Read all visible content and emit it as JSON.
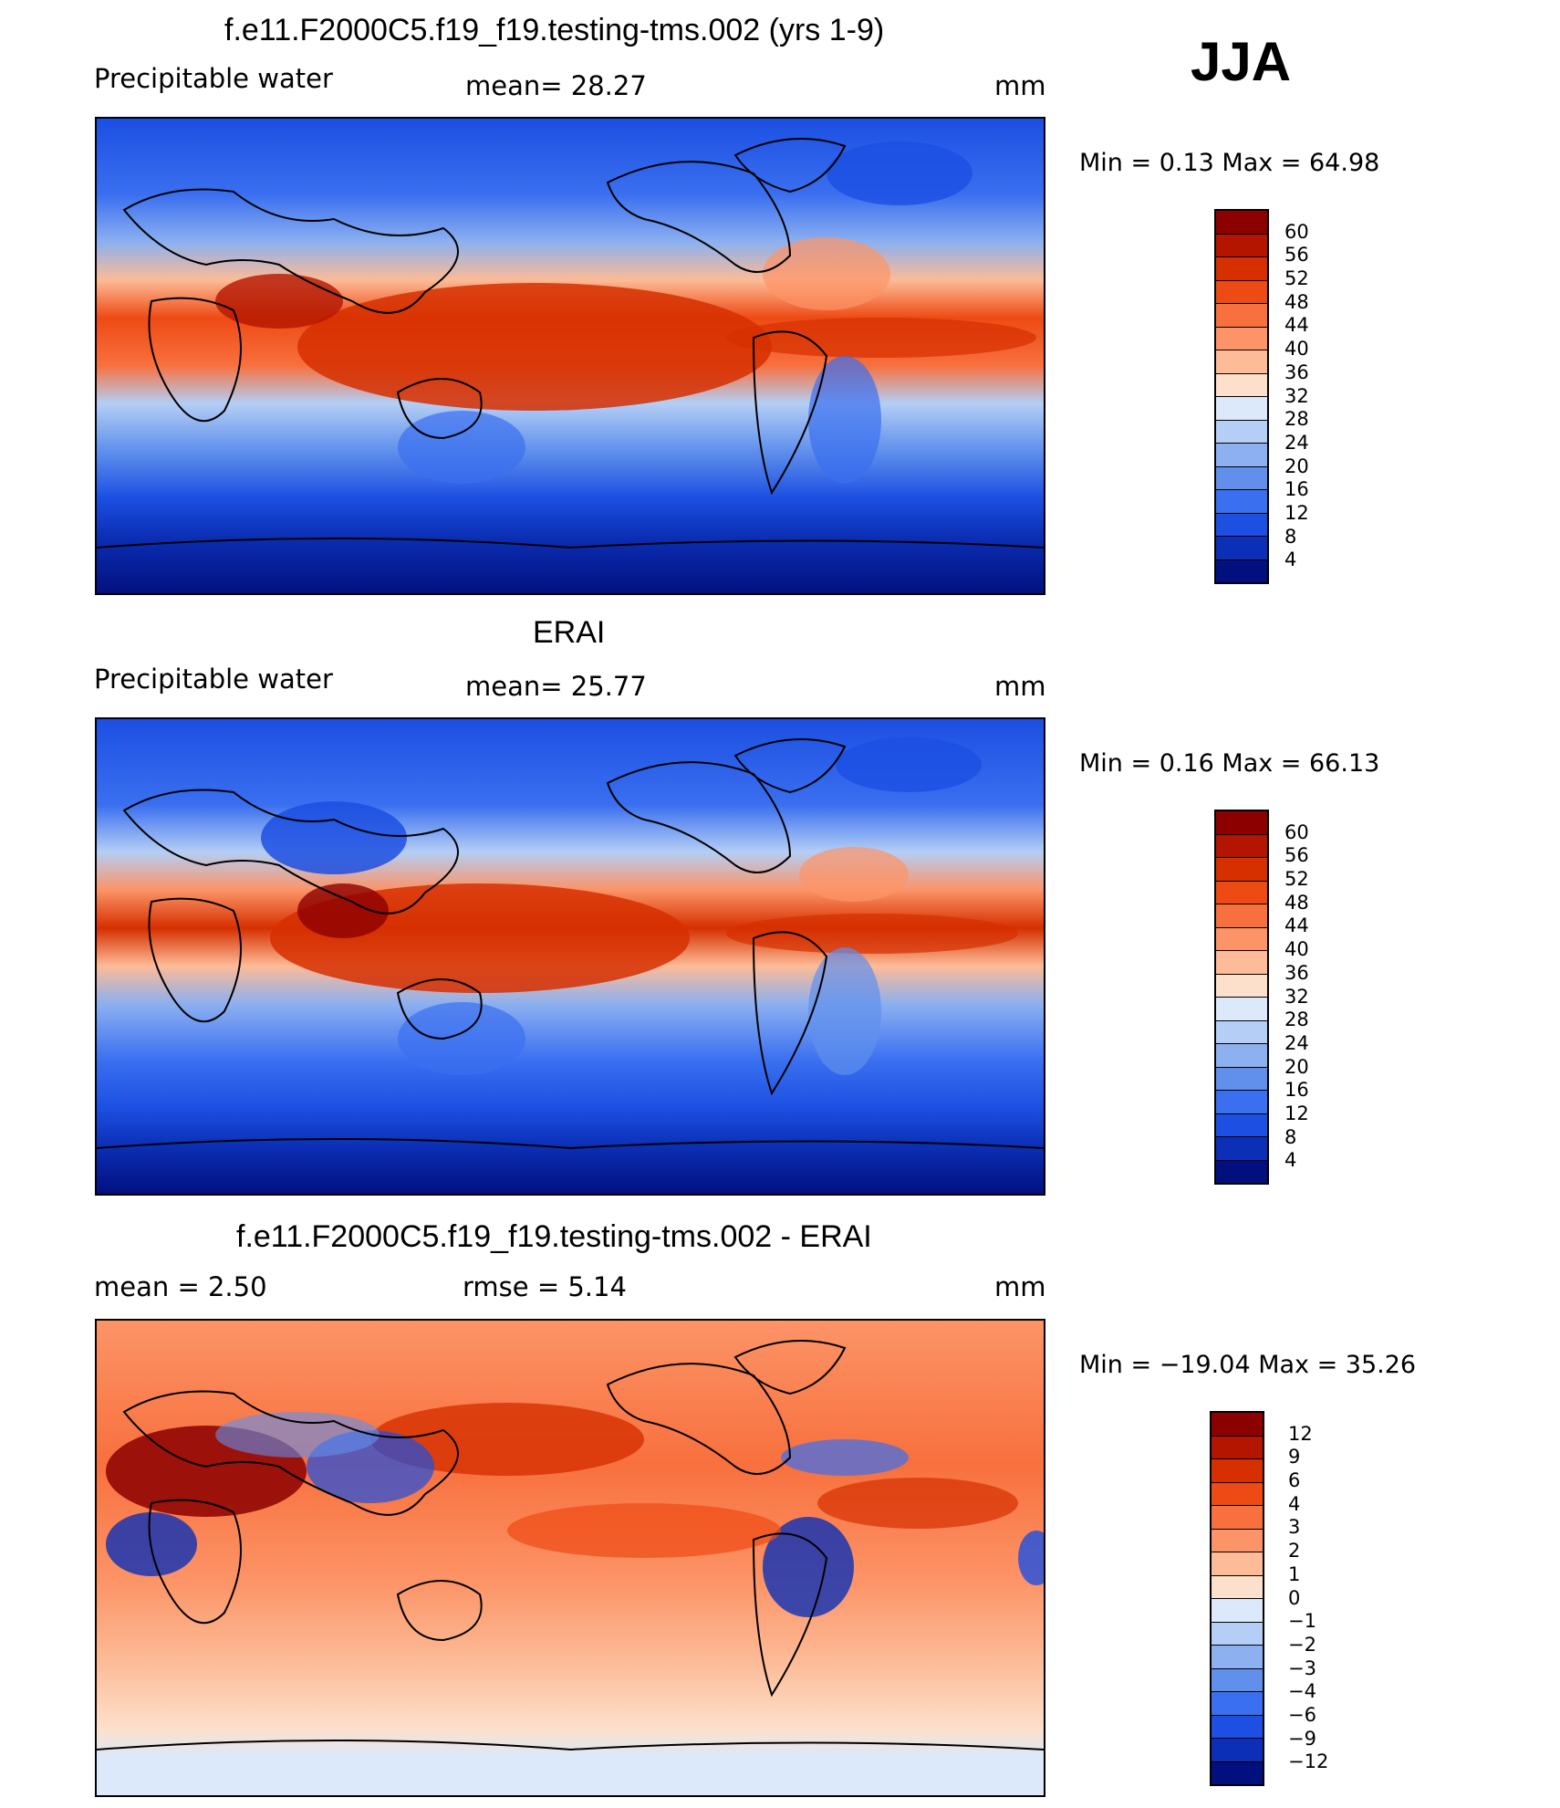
{
  "season": "JJA",
  "panels": [
    {
      "id": "model",
      "title": "f.e11.F2000C5.f19_f19.testing-tms.002 (yrs 1-9)",
      "left": "Precipitable  water",
      "middle": "mean=   28.27",
      "units": "mm",
      "minmax": "Min  =     0.13  Max  =    64.98",
      "cbar_labels": [
        "60",
        "56",
        "52",
        "48",
        "44",
        "40",
        "36",
        "32",
        "28",
        "24",
        "20",
        "16",
        "12",
        "8",
        "4"
      ],
      "cbar_colors": [
        "#8c0000",
        "#b31500",
        "#d62f00",
        "#ee4a14",
        "#f8703e",
        "#fc9467",
        "#fdbb97",
        "#fde0cb",
        "#dbe9fa",
        "#b4cef5",
        "#8cb0f0",
        "#6090ec",
        "#3a6ff0",
        "#1c4fe2",
        "#0b2fb6",
        "#02107f"
      ]
    },
    {
      "id": "obs",
      "title": "ERAI",
      "left": "Precipitable  water",
      "middle": "mean=   25.77",
      "units": "mm",
      "minmax": "Min  =     0.16  Max  =    66.13",
      "cbar_labels": [
        "60",
        "56",
        "52",
        "48",
        "44",
        "40",
        "36",
        "32",
        "28",
        "24",
        "20",
        "16",
        "12",
        "8",
        "4"
      ],
      "cbar_colors": [
        "#8c0000",
        "#b31500",
        "#d62f00",
        "#ee4a14",
        "#f8703e",
        "#fc9467",
        "#fdbb97",
        "#fde0cb",
        "#dbe9fa",
        "#b4cef5",
        "#8cb0f0",
        "#6090ec",
        "#3a6ff0",
        "#1c4fe2",
        "#0b2fb6",
        "#02107f"
      ]
    },
    {
      "id": "diff",
      "title": "f.e11.F2000C5.f19_f19.testing-tms.002 - ERAI",
      "left": "mean  =      2.50",
      "middle": "rmse  =      5.14",
      "units": "mm",
      "minmax": "Min  = −19.04  Max  =    35.26",
      "cbar_labels": [
        "12",
        "9",
        "6",
        "4",
        "3",
        "2",
        "1",
        "0",
        "−1",
        "−2",
        "−3",
        "−4",
        "−6",
        "−9",
        "−12"
      ],
      "cbar_colors": [
        "#8c0000",
        "#b31500",
        "#d62f00",
        "#ee4a14",
        "#f8703e",
        "#fc9467",
        "#fdbb97",
        "#fde0cb",
        "#dbe9fa",
        "#b4cef5",
        "#8cb0f0",
        "#6090ec",
        "#3a6ff0",
        "#1c4fe2",
        "#0b2fb6",
        "#02107f"
      ]
    }
  ]
}
